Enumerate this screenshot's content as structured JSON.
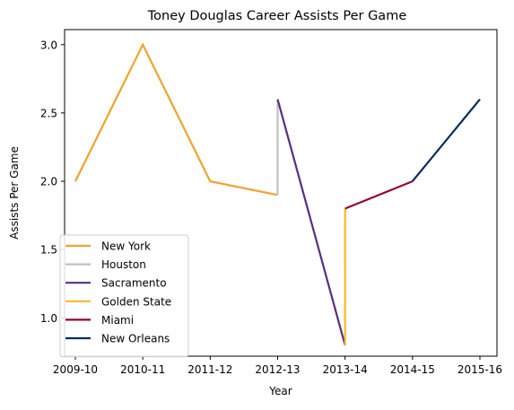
{
  "chart_data": {
    "type": "line",
    "title": "Toney Douglas Career Assists Per Game",
    "xlabel": "Year",
    "ylabel": "Assists Per Game",
    "categories": [
      "2009-10",
      "2010-11",
      "2011-12",
      "2012-13",
      "2013-14",
      "2014-15",
      "2015-16"
    ],
    "ylim": [
      0.72,
      3.11
    ],
    "yticks": [
      1.0,
      1.5,
      2.0,
      2.5,
      3.0
    ],
    "ytick_labels": [
      "1.0",
      "1.5",
      "2.0",
      "2.5",
      "3.0"
    ],
    "grid": false,
    "legend_position": "lower-left",
    "series": [
      {
        "name": "New York",
        "color": "#F5A12A",
        "points": [
          [
            0,
            2.0
          ],
          [
            1,
            3.0
          ],
          [
            2,
            2.0
          ],
          [
            3,
            1.9
          ]
        ]
      },
      {
        "name": "Houston",
        "color": "#C0C0C0",
        "points": [
          [
            3,
            1.9
          ],
          [
            3,
            2.6
          ]
        ]
      },
      {
        "name": "Sacramento",
        "color": "#5A2D81",
        "points": [
          [
            3,
            2.6
          ],
          [
            4,
            0.8
          ]
        ]
      },
      {
        "name": "Golden State",
        "color": "#FDB927",
        "points": [
          [
            4,
            0.8
          ],
          [
            4,
            1.8
          ]
        ]
      },
      {
        "name": "Miami",
        "color": "#98002E",
        "points": [
          [
            4,
            1.8
          ],
          [
            5,
            2.0
          ]
        ]
      },
      {
        "name": "New Orleans",
        "color": "#002B5C",
        "points": [
          [
            5,
            2.0
          ],
          [
            6,
            2.6
          ]
        ]
      }
    ]
  }
}
